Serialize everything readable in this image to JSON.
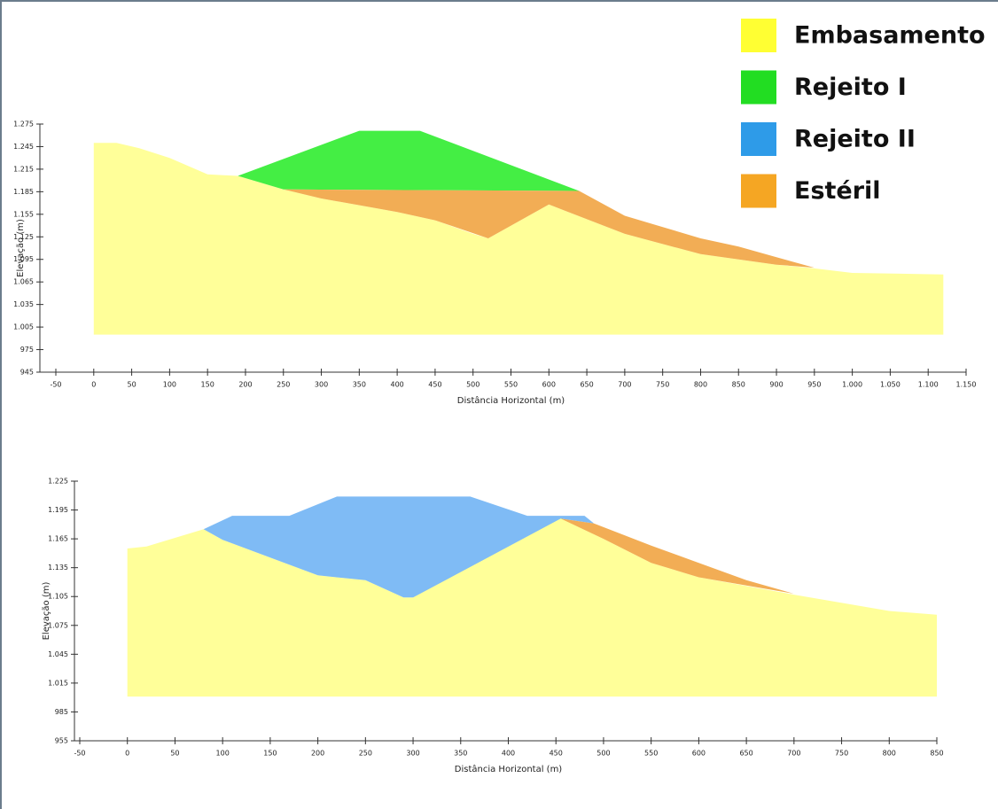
{
  "legend": {
    "position": "top-right",
    "entries": [
      {
        "name": "Embasamento",
        "color": "#FFFF33"
      },
      {
        "name": "Rejeito I",
        "color": "#22DD22"
      },
      {
        "name": "Rejeito II",
        "color": "#2E9BE8"
      },
      {
        "name": "Estéril",
        "color": "#F5A623"
      }
    ]
  },
  "chart_data": [
    {
      "type": "area",
      "xlabel": "Distância Horizontal (m)",
      "ylabel": "Elevação (m)",
      "xlim": [
        -50,
        1150
      ],
      "ylim": [
        945,
        1275
      ],
      "xticks": [
        -50,
        0,
        50,
        100,
        150,
        200,
        250,
        300,
        350,
        400,
        450,
        500,
        550,
        600,
        650,
        700,
        750,
        800,
        850,
        900,
        950,
        {
          "value": 1000,
          "label": "1.000"
        },
        {
          "value": 1050,
          "label": "1.050"
        },
        {
          "value": 1100,
          "label": "1.100"
        },
        {
          "value": 1150,
          "label": "1.150"
        }
      ],
      "yticks": [
        945,
        975,
        {
          "value": 1005,
          "label": "1.005"
        },
        {
          "value": 1035,
          "label": "1.035"
        },
        {
          "value": 1065,
          "label": "1.065"
        },
        {
          "value": 1095,
          "label": "1.095"
        },
        {
          "value": 1125,
          "label": "1.125"
        },
        {
          "value": 1155,
          "label": "1.155"
        },
        {
          "value": 1185,
          "label": "1.185"
        },
        {
          "value": 1215,
          "label": "1.215"
        },
        {
          "value": 1245,
          "label": "1.245"
        },
        {
          "value": 1275,
          "label": "1.275"
        }
      ],
      "series": [
        {
          "color": "#FFFF99",
          "x": [
            0,
            0,
            30,
            60,
            100,
            150,
            190,
            250,
            300,
            400,
            450,
            500,
            520,
            600,
            700,
            800,
            900,
            950,
            1000,
            1120,
            1120
          ],
          "values": [
            995,
            1250,
            1250,
            1243,
            1230,
            1208,
            1206,
            1188,
            1176,
            1158,
            1147,
            1129,
            1123,
            1168,
            1129,
            1102,
            1088,
            1083,
            1077,
            1075,
            995
          ]
        },
        {
          "color": "#44EE44",
          "x": [
            190,
            350,
            430,
            640,
            250
          ],
          "values": [
            1206,
            1266,
            1266,
            1186,
            1188
          ]
        },
        {
          "color": "#F2AD55",
          "x": [
            250,
            640,
            700,
            800,
            850,
            900,
            950,
            900,
            800,
            700,
            600,
            520,
            450,
            400,
            300
          ],
          "values": [
            1188,
            1186,
            1153,
            1123,
            1112,
            1098,
            1084,
            1088,
            1102,
            1129,
            1168,
            1123,
            1147,
            1158,
            1176
          ]
        }
      ]
    },
    {
      "type": "area",
      "xlabel": "Distância Horizontal (m)",
      "ylabel": "Elevação (m)",
      "xlim": [
        -50,
        850
      ],
      "ylim": [
        955,
        1225
      ],
      "xticks": [
        -50,
        0,
        50,
        100,
        150,
        200,
        250,
        300,
        350,
        400,
        450,
        500,
        550,
        600,
        650,
        700,
        750,
        800,
        850
      ],
      "yticks": [
        955,
        985,
        {
          "value": 1015,
          "label": "1.015"
        },
        {
          "value": 1045,
          "label": "1.045"
        },
        {
          "value": 1075,
          "label": "1.075"
        },
        {
          "value": 1105,
          "label": "1.105"
        },
        {
          "value": 1135,
          "label": "1.135"
        },
        {
          "value": 1165,
          "label": "1.165"
        },
        {
          "value": 1195,
          "label": "1.195"
        },
        {
          "value": 1225,
          "label": "1.225"
        }
      ],
      "series": [
        {
          "color": "#FFFF99",
          "x": [
            0,
            0,
            20,
            80,
            100,
            200,
            250,
            290,
            300,
            450,
            500,
            550,
            600,
            700,
            800,
            850,
            850
          ],
          "values": [
            1001,
            1155,
            1157,
            1175,
            1164,
            1127,
            1122,
            1104,
            1104,
            1189,
            1165,
            1140,
            1125,
            1107,
            1090,
            1086,
            1001
          ]
        },
        {
          "color": "#7FBBF5",
          "x": [
            80,
            110,
            170,
            220,
            360,
            420,
            480,
            490,
            455,
            300,
            290,
            250,
            200,
            100
          ],
          "values": [
            1175,
            1189,
            1189,
            1209,
            1209,
            1189,
            1189,
            1181,
            1186,
            1104,
            1104,
            1122,
            1127,
            1164
          ]
        },
        {
          "color": "#F2AD55",
          "x": [
            455,
            490,
            550,
            600,
            650,
            700,
            600,
            550,
            500
          ],
          "values": [
            1186,
            1181,
            1158,
            1140,
            1122,
            1108,
            1125,
            1140,
            1165
          ]
        }
      ]
    }
  ]
}
